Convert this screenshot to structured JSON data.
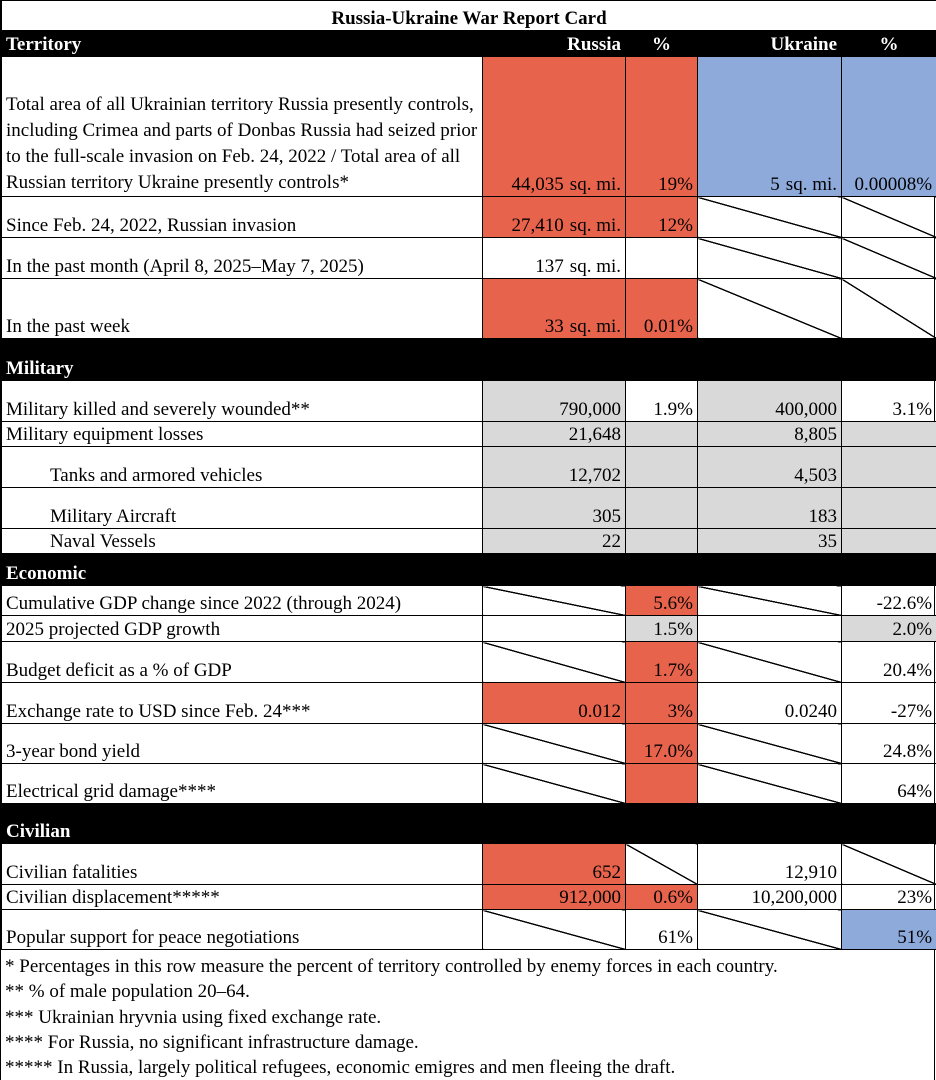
{
  "title": "Russia-Ukraine War Report Card",
  "header": {
    "russia": "Russia",
    "pct": "%",
    "ukraine": "Ukraine"
  },
  "sections": {
    "territory": "Territory",
    "military": "Military",
    "economic": "Economic",
    "civilian": "Civilian"
  },
  "unit": "sq. mi.",
  "territory": {
    "r1": {
      "label": "Total area of all Ukrainian territory Russia presently controls, including Crimea and parts of Donbas Russia had seized prior to the full-scale invasion on Feb. 24, 2022 / Total area of all Russian territory Ukraine presently controls*",
      "ru": "44,035",
      "ru_pct": "19%",
      "ua": "5",
      "ua_pct": "0.00008%"
    },
    "r2": {
      "label": "Since Feb. 24, 2022, Russian invasion",
      "ru": "27,410",
      "ru_pct": "12%"
    },
    "r3": {
      "label": "In the past month (April 8, 2025–May 7, 2025)",
      "ru": "137"
    },
    "r4": {
      "label": "In the past week",
      "ru": "33",
      "ru_pct": "0.01%"
    }
  },
  "military": {
    "r1": {
      "label": "Military killed and severely wounded**",
      "ru": "790,000",
      "ru_pct": "1.9%",
      "ua": "400,000",
      "ua_pct": "3.1%"
    },
    "r2": {
      "label": "Military equipment losses",
      "ru": "21,648",
      "ua": "8,805"
    },
    "r3": {
      "label": "Tanks and armored vehicles",
      "ru": "12,702",
      "ua": "4,503"
    },
    "r4": {
      "label": "Military Aircraft",
      "ru": "305",
      "ua": "183"
    },
    "r5": {
      "label": "Naval Vessels",
      "ru": "22",
      "ua": "35"
    }
  },
  "economic": {
    "r1": {
      "label": "Cumulative GDP change since 2022 (through 2024)",
      "ru_pct": "5.6%",
      "ua_pct": "-22.6%"
    },
    "r2": {
      "label": "2025 projected GDP growth",
      "ru_pct": "1.5%",
      "ua_pct": "2.0%"
    },
    "r3": {
      "label": "Budget deficit as a % of GDP",
      "ru_pct": "1.7%",
      "ua_pct": "20.4%"
    },
    "r4": {
      "label": "Exchange rate to USD since Feb. 24***",
      "ru": "0.012",
      "ru_pct": "3%",
      "ua": "0.0240",
      "ua_pct": "-27%"
    },
    "r5": {
      "label": "3-year bond yield",
      "ru_pct": "17.0%",
      "ua_pct": "24.8%"
    },
    "r6": {
      "label": "Electrical grid damage****",
      "ua_pct": "64%"
    }
  },
  "civilian": {
    "r1": {
      "label": "Civilian fatalities",
      "ru": "652",
      "ua": "12,910"
    },
    "r2": {
      "label": "Civilian displacement*****",
      "ru": "912,000",
      "ru_pct": "0.6%",
      "ua": "10,200,000",
      "ua_pct": "23%"
    },
    "r3": {
      "label": "Popular support for peace negotiations",
      "ru_pct": "61%",
      "ua_pct": "51%"
    }
  },
  "footnotes": [
    "* Percentages in this row measure the percent of territory controlled by enemy forces in each country.",
    "** % of male population 20–64.",
    "*** Ukrainian hryvnia using fixed exchange rate.",
    "**** For Russia, no significant infrastructure damage.",
    "***** In Russia, largely political refugees, economic emigres and men fleeing the draft."
  ],
  "colors": {
    "russia_highlight": "#e8634c",
    "ukraine_highlight": "#8eaadb",
    "neutral": "#d9d9d9",
    "section_bar": "#000000"
  }
}
